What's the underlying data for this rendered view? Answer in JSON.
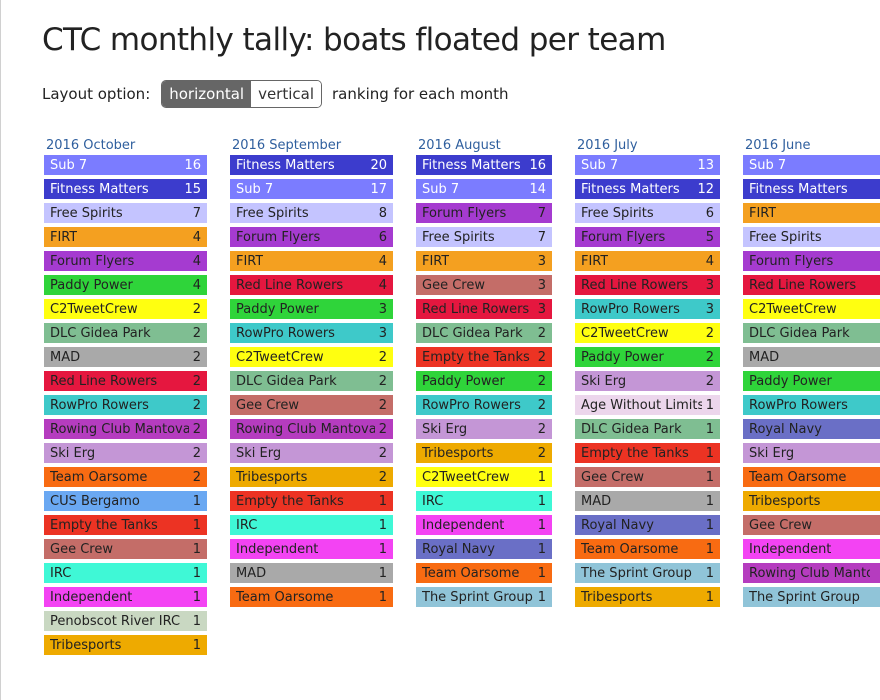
{
  "page": {
    "title": "CTC monthly tally: boats floated per team",
    "layout_label": "Layout option:",
    "layout_options": [
      "horizontal",
      "vertical"
    ],
    "selected_layout": "horizontal",
    "layout_suffix": "ranking for each month"
  },
  "months": [
    {
      "title": "2016 October",
      "rows": [
        {
          "team": "Sub 7",
          "count": "16",
          "bg": "#7b7cff",
          "fg": "#ffffff"
        },
        {
          "team": "Fitness Matters",
          "count": "15",
          "bg": "#3c3ccd",
          "fg": "#ffffff"
        },
        {
          "team": "Free Spirits",
          "count": "7",
          "bg": "#c4c4ff",
          "fg": "#222222"
        },
        {
          "team": "FIRT",
          "count": "4",
          "bg": "#f4a020",
          "fg": "#222222"
        },
        {
          "team": "Forum Flyers",
          "count": "4",
          "bg": "#a53bd0",
          "fg": "#222222"
        },
        {
          "team": "Paddy Power",
          "count": "4",
          "bg": "#2fd43a",
          "fg": "#222222"
        },
        {
          "team": "C2TweetCrew",
          "count": "2",
          "bg": "#ffff10",
          "fg": "#222222"
        },
        {
          "team": "DLC Gidea Park",
          "count": "2",
          "bg": "#7fbe92",
          "fg": "#222222"
        },
        {
          "team": "MAD",
          "count": "2",
          "bg": "#a9a9a9",
          "fg": "#222222"
        },
        {
          "team": "Red Line Rowers",
          "count": "2",
          "bg": "#e5173f",
          "fg": "#222222"
        },
        {
          "team": "RowPro Rowers",
          "count": "2",
          "bg": "#3ec9c9",
          "fg": "#222222"
        },
        {
          "team": "Rowing Club Mantova",
          "count": "2",
          "bg": "#b53cbf",
          "fg": "#222222"
        },
        {
          "team": "Ski Erg",
          "count": "2",
          "bg": "#c496d6",
          "fg": "#222222"
        },
        {
          "team": "Team Oarsome",
          "count": "2",
          "bg": "#f86b12",
          "fg": "#222222"
        },
        {
          "team": "CUS Bergamo",
          "count": "1",
          "bg": "#6aa8f2",
          "fg": "#222222"
        },
        {
          "team": "Empty the Tanks",
          "count": "1",
          "bg": "#ec3323",
          "fg": "#222222"
        },
        {
          "team": "Gee Crew",
          "count": "1",
          "bg": "#c46d68",
          "fg": "#222222"
        },
        {
          "team": "IRC",
          "count": "1",
          "bg": "#3ff8d6",
          "fg": "#222222"
        },
        {
          "team": "Independent",
          "count": "1",
          "bg": "#f343f3",
          "fg": "#222222"
        },
        {
          "team": "Penobscot River IRC",
          "count": "1",
          "bg": "#c9d8c2",
          "fg": "#222222"
        },
        {
          "team": "Tribesports",
          "count": "1",
          "bg": "#eeaa00",
          "fg": "#222222"
        }
      ]
    },
    {
      "title": "2016 September",
      "rows": [
        {
          "team": "Fitness Matters",
          "count": "20",
          "bg": "#3c3ccd",
          "fg": "#ffffff"
        },
        {
          "team": "Sub 7",
          "count": "17",
          "bg": "#7b7cff",
          "fg": "#ffffff"
        },
        {
          "team": "Free Spirits",
          "count": "8",
          "bg": "#c4c4ff",
          "fg": "#222222"
        },
        {
          "team": "Forum Flyers",
          "count": "6",
          "bg": "#a53bd0",
          "fg": "#222222"
        },
        {
          "team": "FIRT",
          "count": "4",
          "bg": "#f4a020",
          "fg": "#222222"
        },
        {
          "team": "Red Line Rowers",
          "count": "4",
          "bg": "#e5173f",
          "fg": "#222222"
        },
        {
          "team": "Paddy Power",
          "count": "3",
          "bg": "#2fd43a",
          "fg": "#222222"
        },
        {
          "team": "RowPro Rowers",
          "count": "3",
          "bg": "#3ec9c9",
          "fg": "#222222"
        },
        {
          "team": "C2TweetCrew",
          "count": "2",
          "bg": "#ffff10",
          "fg": "#222222"
        },
        {
          "team": "DLC Gidea Park",
          "count": "2",
          "bg": "#7fbe92",
          "fg": "#222222"
        },
        {
          "team": "Gee Crew",
          "count": "2",
          "bg": "#c46d68",
          "fg": "#222222"
        },
        {
          "team": "Rowing Club Mantova",
          "count": "2",
          "bg": "#b53cbf",
          "fg": "#222222"
        },
        {
          "team": "Ski Erg",
          "count": "2",
          "bg": "#c496d6",
          "fg": "#222222"
        },
        {
          "team": "Tribesports",
          "count": "2",
          "bg": "#eeaa00",
          "fg": "#222222"
        },
        {
          "team": "Empty the Tanks",
          "count": "1",
          "bg": "#ec3323",
          "fg": "#222222"
        },
        {
          "team": "IRC",
          "count": "1",
          "bg": "#3ff8d6",
          "fg": "#222222"
        },
        {
          "team": "Independent",
          "count": "1",
          "bg": "#f343f3",
          "fg": "#222222"
        },
        {
          "team": "MAD",
          "count": "1",
          "bg": "#a9a9a9",
          "fg": "#222222"
        },
        {
          "team": "Team Oarsome",
          "count": "1",
          "bg": "#f86b12",
          "fg": "#222222"
        }
      ]
    },
    {
      "title": "2016 August",
      "rows": [
        {
          "team": "Fitness Matters",
          "count": "16",
          "bg": "#3c3ccd",
          "fg": "#ffffff"
        },
        {
          "team": "Sub 7",
          "count": "14",
          "bg": "#7b7cff",
          "fg": "#ffffff"
        },
        {
          "team": "Forum Flyers",
          "count": "7",
          "bg": "#a53bd0",
          "fg": "#222222"
        },
        {
          "team": "Free Spirits",
          "count": "7",
          "bg": "#c4c4ff",
          "fg": "#222222"
        },
        {
          "team": "FIRT",
          "count": "3",
          "bg": "#f4a020",
          "fg": "#222222"
        },
        {
          "team": "Gee Crew",
          "count": "3",
          "bg": "#c46d68",
          "fg": "#222222"
        },
        {
          "team": "Red Line Rowers",
          "count": "3",
          "bg": "#e5173f",
          "fg": "#222222"
        },
        {
          "team": "DLC Gidea Park",
          "count": "2",
          "bg": "#7fbe92",
          "fg": "#222222"
        },
        {
          "team": "Empty the Tanks",
          "count": "2",
          "bg": "#ec3323",
          "fg": "#222222"
        },
        {
          "team": "Paddy Power",
          "count": "2",
          "bg": "#2fd43a",
          "fg": "#222222"
        },
        {
          "team": "RowPro Rowers",
          "count": "2",
          "bg": "#3ec9c9",
          "fg": "#222222"
        },
        {
          "team": "Ski Erg",
          "count": "2",
          "bg": "#c496d6",
          "fg": "#222222"
        },
        {
          "team": "Tribesports",
          "count": "2",
          "bg": "#eeaa00",
          "fg": "#222222"
        },
        {
          "team": "C2TweetCrew",
          "count": "1",
          "bg": "#ffff10",
          "fg": "#222222"
        },
        {
          "team": "IRC",
          "count": "1",
          "bg": "#3ff8d6",
          "fg": "#222222"
        },
        {
          "team": "Independent",
          "count": "1",
          "bg": "#f343f3",
          "fg": "#222222"
        },
        {
          "team": "Royal Navy",
          "count": "1",
          "bg": "#6a6fc6",
          "fg": "#222222"
        },
        {
          "team": "Team Oarsome",
          "count": "1",
          "bg": "#f86b12",
          "fg": "#222222"
        },
        {
          "team": "The Sprint Group",
          "count": "1",
          "bg": "#90c4d8",
          "fg": "#222222"
        }
      ]
    },
    {
      "title": "2016 July",
      "rows": [
        {
          "team": "Sub 7",
          "count": "13",
          "bg": "#7b7cff",
          "fg": "#ffffff"
        },
        {
          "team": "Fitness Matters",
          "count": "12",
          "bg": "#3c3ccd",
          "fg": "#ffffff"
        },
        {
          "team": "Free Spirits",
          "count": "6",
          "bg": "#c4c4ff",
          "fg": "#222222"
        },
        {
          "team": "Forum Flyers",
          "count": "5",
          "bg": "#a53bd0",
          "fg": "#222222"
        },
        {
          "team": "FIRT",
          "count": "4",
          "bg": "#f4a020",
          "fg": "#222222"
        },
        {
          "team": "Red Line Rowers",
          "count": "3",
          "bg": "#e5173f",
          "fg": "#222222"
        },
        {
          "team": "RowPro Rowers",
          "count": "3",
          "bg": "#3ec9c9",
          "fg": "#222222"
        },
        {
          "team": "C2TweetCrew",
          "count": "2",
          "bg": "#ffff10",
          "fg": "#222222"
        },
        {
          "team": "Paddy Power",
          "count": "2",
          "bg": "#2fd43a",
          "fg": "#222222"
        },
        {
          "team": "Ski Erg",
          "count": "2",
          "bg": "#c496d6",
          "fg": "#222222"
        },
        {
          "team": "Age Without Limits",
          "count": "1",
          "bg": "#ecd6ec",
          "fg": "#222222"
        },
        {
          "team": "DLC Gidea Park",
          "count": "1",
          "bg": "#7fbe92",
          "fg": "#222222"
        },
        {
          "team": "Empty the Tanks",
          "count": "1",
          "bg": "#ec3323",
          "fg": "#222222"
        },
        {
          "team": "Gee Crew",
          "count": "1",
          "bg": "#c46d68",
          "fg": "#222222"
        },
        {
          "team": "MAD",
          "count": "1",
          "bg": "#a9a9a9",
          "fg": "#222222"
        },
        {
          "team": "Royal Navy",
          "count": "1",
          "bg": "#6a6fc6",
          "fg": "#222222"
        },
        {
          "team": "Team Oarsome",
          "count": "1",
          "bg": "#f86b12",
          "fg": "#222222"
        },
        {
          "team": "The Sprint Group",
          "count": "1",
          "bg": "#90c4d8",
          "fg": "#222222"
        },
        {
          "team": "Tribesports",
          "count": "1",
          "bg": "#eeaa00",
          "fg": "#222222"
        }
      ]
    },
    {
      "title": "2016 June",
      "rows": [
        {
          "team": "Sub 7",
          "count": "",
          "bg": "#7b7cff",
          "fg": "#ffffff"
        },
        {
          "team": "Fitness Matters",
          "count": "",
          "bg": "#3c3ccd",
          "fg": "#ffffff"
        },
        {
          "team": "FIRT",
          "count": "",
          "bg": "#f4a020",
          "fg": "#222222"
        },
        {
          "team": "Free Spirits",
          "count": "",
          "bg": "#c4c4ff",
          "fg": "#222222"
        },
        {
          "team": "Forum Flyers",
          "count": "",
          "bg": "#a53bd0",
          "fg": "#222222"
        },
        {
          "team": "Red Line Rowers",
          "count": "",
          "bg": "#e5173f",
          "fg": "#222222"
        },
        {
          "team": "C2TweetCrew",
          "count": "",
          "bg": "#ffff10",
          "fg": "#222222"
        },
        {
          "team": "DLC Gidea Park",
          "count": "",
          "bg": "#7fbe92",
          "fg": "#222222"
        },
        {
          "team": "MAD",
          "count": "",
          "bg": "#a9a9a9",
          "fg": "#222222"
        },
        {
          "team": "Paddy Power",
          "count": "",
          "bg": "#2fd43a",
          "fg": "#222222"
        },
        {
          "team": "RowPro Rowers",
          "count": "",
          "bg": "#3ec9c9",
          "fg": "#222222"
        },
        {
          "team": "Royal Navy",
          "count": "",
          "bg": "#6a6fc6",
          "fg": "#222222"
        },
        {
          "team": "Ski Erg",
          "count": "",
          "bg": "#c496d6",
          "fg": "#222222"
        },
        {
          "team": "Team Oarsome",
          "count": "",
          "bg": "#f86b12",
          "fg": "#222222"
        },
        {
          "team": "Tribesports",
          "count": "",
          "bg": "#eeaa00",
          "fg": "#222222"
        },
        {
          "team": "Gee Crew",
          "count": "",
          "bg": "#c46d68",
          "fg": "#222222"
        },
        {
          "team": "Independent",
          "count": "",
          "bg": "#f343f3",
          "fg": "#222222"
        },
        {
          "team": "Rowing Club Mantova",
          "count": "",
          "bg": "#b53cbf",
          "fg": "#222222"
        },
        {
          "team": "The Sprint Group",
          "count": "",
          "bg": "#90c4d8",
          "fg": "#222222"
        }
      ]
    }
  ]
}
